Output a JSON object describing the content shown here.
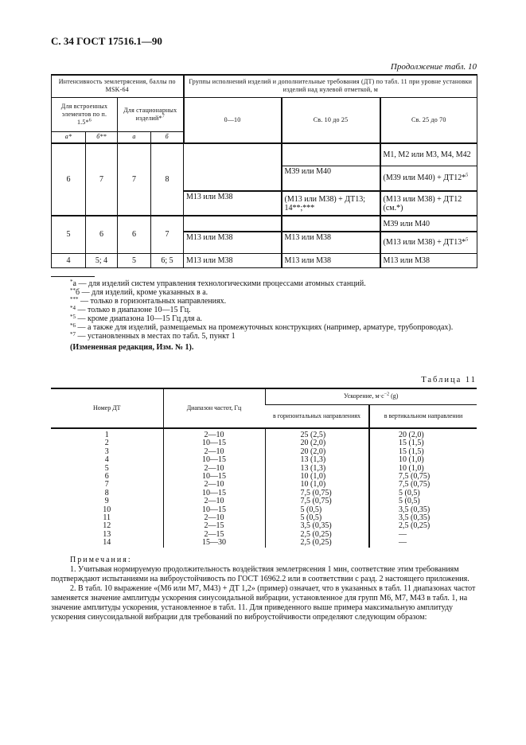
{
  "page_header": "С. 34 ГОСТ 17516.1—90",
  "continuation": "Продолжение табл. 10",
  "table10": {
    "h_intensity": "Интенсивность землетрясения, баллы по MSK-64",
    "h_groups": "Группы исполнений изделий и дополнительные требования (ДТ) по табл. 11 при уровне установки изделий над нулевой отметкой, м",
    "h_builtin": "Для встроенных элементов по п. 1.5*",
    "h_builtin_sup": "6",
    "h_stationary": "Для стационарных изделий*",
    "h_stationary_sup": "7",
    "h_0_10": "0—10",
    "h_10_25": "Св. 10 до 25",
    "h_25_70": "Св. 25 до 70",
    "h_a1": "а*",
    "h_b1": "б**",
    "h_a2": "а",
    "h_b2": "б",
    "r6": {
      "a1": "6",
      "b1": "7",
      "a2": "7",
      "b2": "8"
    },
    "r6_25_70_1": "M1, M2 или M3, M4, M42",
    "r6_10_25_2": "M39 или M40",
    "r6_25_70_2": "(M39 или M40) + ДТ12*",
    "r6_25_70_2_sup": "5",
    "r6_0_10_3": "M13 или M38",
    "r6_10_25_3": "(M13 или M38) + ДТ13; 14**;***",
    "r6_25_70_3": "(M13 или M38) + ДТ12 (см.*)",
    "r5": {
      "a1": "5",
      "b1": "6",
      "a2": "6",
      "b2": "7"
    },
    "r5_25_70_1": "M39 или M40",
    "r5_0_10_2": "M13 или M38",
    "r5_10_25_2": "M13 или M38",
    "r5_25_70_2": "(M13 или M38) + ДТ13*",
    "r5_25_70_2_sup": "5",
    "r4": {
      "a1": "4",
      "b1": "5; 4",
      "a2": "5",
      "b2": "6; 5",
      "c1": "M13 или M38",
      "c2": "M13 или M38",
      "c3": "M13 или M38"
    }
  },
  "footnotes": [
    {
      "mark": "*",
      "text": "а — для изделий систем управления технологическими процессами атомных станций."
    },
    {
      "mark": "**",
      "text": "б — для изделий, кроме указанных в а."
    },
    {
      "mark": "***",
      "text": " — только в горизонтальных направлениях."
    },
    {
      "mark": "*4",
      "text": " — только в диапазоне 10—15 Гц."
    },
    {
      "mark": "*5",
      "text": " — кроме диапазона 10—15 Гц для а."
    },
    {
      "mark": "*6",
      "text": " — а также для изделий, размещаемых на промежуточных конструкциях (например, арматуре, трубопроводах)."
    },
    {
      "mark": "*7",
      "text": " — установленных в местах по табл. 5, пункт 1"
    }
  ],
  "amendment": "(Измененная редакция, Изм. № 1).",
  "table11": {
    "caption": "Таблица 11",
    "h_num": "Номер ДТ",
    "h_freq": "Диапазон частот, Гц",
    "h_accel": "Ускорение, м·с",
    "h_accel_exp": "−2",
    "h_accel_unit": " (g)",
    "h_horiz": "в горизонтальных направлениях",
    "h_vert": "в вертикальном направлении",
    "rows": [
      [
        "1",
        "2—10",
        "25 (2,5)",
        "20 (2,0)"
      ],
      [
        "2",
        "10—15",
        "20 (2,0)",
        "15 (1,5)"
      ],
      [
        "3",
        "2—10",
        "20 (2,0)",
        "15 (1,5)"
      ],
      [
        "4",
        "10—15",
        "13 (1,3)",
        "10 (1,0)"
      ],
      [
        "5",
        "2—10",
        "13 (1,3)",
        "10 (1,0)"
      ],
      [
        "6",
        "10—15",
        "10 (1,0)",
        "7,5 (0,75)"
      ],
      [
        "7",
        "2—10",
        "10 (1,0)",
        "7,5 (0,75)"
      ],
      [
        "8",
        "10—15",
        "7,5 (0,75)",
        "5 (0,5)"
      ],
      [
        "9",
        "2—10",
        "7,5 (0,75)",
        "5 (0,5)"
      ],
      [
        "10",
        "10—15",
        "5 (0,5)",
        "3,5 (0,35)"
      ],
      [
        "11",
        "2—10",
        "5 (0,5)",
        "3,5 (0,35)"
      ],
      [
        "12",
        "2—15",
        "3,5 (0,35)",
        "2,5 (0,25)"
      ],
      [
        "13",
        "2—15",
        "2,5 (0,25)",
        "—"
      ],
      [
        "14",
        "15—30",
        "2,5 (0,25)",
        "—"
      ]
    ]
  },
  "notes": {
    "title": "Примечания:",
    "items": [
      "1. Учитывая нормируемую продолжительность воздействия землетрясения 1 мин, соответствие этим требованиям подтверждают испытаниями на виброустойчивость по ГОСТ 16962.2 или в соответствии с разд. 2 настоящего приложения.",
      "2. В табл. 10 выражение «(М6 или М7, М43) + ДТ 1,2» (пример) означает, что в указанных в табл. 11 диапазонах частот заменяется значение амплитуды ускорения синусоидальной вибрации, установленное для групп М6, М7, М43 в табл. 1, на значение амплитуды ускорения, установленное в табл. 11. Для приведенного выше примера максимальную амплитуду ускорения синусоидальной вибрации для требований по виброустойчивости определяют следующим образом:"
    ]
  }
}
